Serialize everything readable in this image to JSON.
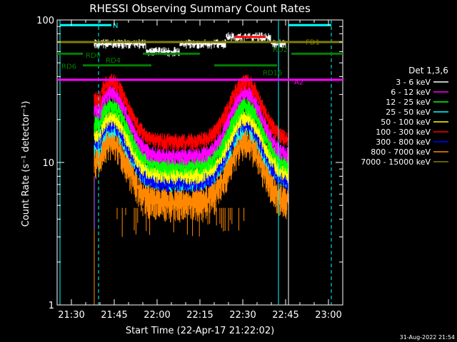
{
  "chart_data": {
    "type": "line",
    "title": "RHESSI Observing Summary Count Rates",
    "xlabel": "Start Time (22-Apr-17 21:22:02)",
    "ylabel": "Count Rate (s⁻¹ detector⁻¹)",
    "yscale": "log",
    "ylim": [
      1,
      100
    ],
    "xlim_minutes": [
      1285,
      1385
    ],
    "xticks": [
      {
        "label": "21:30",
        "min": 1290
      },
      {
        "label": "21:45",
        "min": 1305
      },
      {
        "label": "22:00",
        "min": 1320
      },
      {
        "label": "22:15",
        "min": 1335
      },
      {
        "label": "22:30",
        "min": 1350
      },
      {
        "label": "22:45",
        "min": 1365
      },
      {
        "label": "23:00",
        "min": 1380
      }
    ],
    "yticks": [
      {
        "label": "1",
        "value": 1
      },
      {
        "label": "10",
        "value": 10
      },
      {
        "label": "100",
        "value": 100
      }
    ],
    "legend_title": "Det 1,3,6",
    "legend_placement": "right",
    "series": [
      {
        "name": "3 - 6 keV",
        "color": "#ffffff",
        "level": 70
      },
      {
        "name": "6 - 12 keV",
        "color": "#ff00ff",
        "level": 22
      },
      {
        "name": "12 - 25 keV",
        "color": "#00ff00",
        "level": 20
      },
      {
        "name": "25 - 50 keV",
        "color": "#00ffff",
        "level": 17
      },
      {
        "name": "50 - 100 keV",
        "color": "#ffff00",
        "level": 15
      },
      {
        "name": "100 - 300 keV",
        "color": "#ff0000",
        "level": 26
      },
      {
        "name": "300 - 800 keV",
        "color": "#0000ff",
        "level": 16
      },
      {
        "name": "800 - 7000 keV",
        "color": "#ff8800",
        "level": 11
      },
      {
        "name": "7000 - 15000 keV",
        "color": "#808000",
        "level": 70
      }
    ],
    "flags": [
      {
        "label": "N",
        "color": "#00ffff",
        "y": 92,
        "x0": 1286,
        "x1": 1304,
        "x2": 1366,
        "x3": 1381
      },
      {
        "label": "FD1",
        "color": "#808000",
        "y": 70
      },
      {
        "label": "RD0",
        "color": "#008000",
        "y": 58
      },
      {
        "label": "RD4",
        "color": "#008000",
        "y": 52
      },
      {
        "label": "RD6",
        "color": "#008000",
        "y": 48
      },
      {
        "label": "RD2",
        "color": "#008000",
        "y": 62
      },
      {
        "label": "RD16",
        "color": "#008000",
        "y": 46
      },
      {
        "label": "A2",
        "color": "#ff00ff",
        "y": 38
      }
    ],
    "vlines": [
      {
        "min": 1286,
        "style": "solid",
        "color": "#00ffff"
      },
      {
        "min": 1299.5,
        "style": "dashed",
        "color": "#00ffff"
      },
      {
        "min": 1362.5,
        "style": "solid",
        "color": "#00ffff"
      },
      {
        "min": 1366,
        "style": "solid",
        "color": "#ffffff"
      },
      {
        "min": 1381,
        "style": "dashed",
        "color": "#00ffff"
      }
    ]
  },
  "footer": {
    "timestamp": "31-Aug-2022 21:54"
  }
}
